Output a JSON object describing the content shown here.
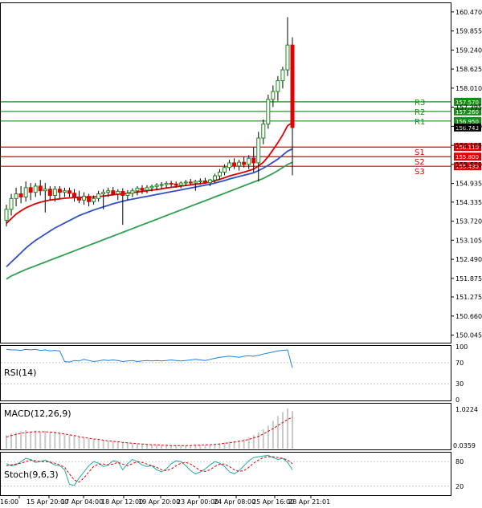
{
  "chart_data": {
    "type": "candlestick",
    "main": {
      "ylim": [
        149.8,
        160.75
      ],
      "price_ticks": [
        "160.470",
        "159.855",
        "159.240",
        "158.625",
        "158.010",
        "157.395",
        "156.780",
        "156.165",
        "155.550",
        "154.935",
        "154.335",
        "153.720",
        "153.105",
        "152.490",
        "151.875",
        "151.275",
        "150.660",
        "150.045"
      ],
      "candles": [
        {
          "o": 153.75,
          "h": 154.25,
          "l": 153.55,
          "c": 154.1
        },
        {
          "o": 154.1,
          "h": 154.6,
          "l": 153.9,
          "c": 154.45
        },
        {
          "o": 154.45,
          "h": 154.8,
          "l": 154.2,
          "c": 154.6
        },
        {
          "o": 154.6,
          "h": 154.85,
          "l": 154.3,
          "c": 154.5
        },
        {
          "o": 154.5,
          "h": 155.0,
          "l": 154.35,
          "c": 154.8
        },
        {
          "o": 154.8,
          "h": 154.95,
          "l": 154.4,
          "c": 154.65
        },
        {
          "o": 154.65,
          "h": 154.95,
          "l": 154.5,
          "c": 154.85
        },
        {
          "o": 154.85,
          "h": 155.05,
          "l": 154.55,
          "c": 154.7
        },
        {
          "o": 154.7,
          "h": 154.95,
          "l": 154.0,
          "c": 154.75
        },
        {
          "o": 154.75,
          "h": 154.85,
          "l": 154.4,
          "c": 154.55
        },
        {
          "o": 154.55,
          "h": 154.85,
          "l": 154.35,
          "c": 154.75
        },
        {
          "o": 154.75,
          "h": 154.85,
          "l": 154.45,
          "c": 154.65
        },
        {
          "o": 154.65,
          "h": 154.8,
          "l": 154.5,
          "c": 154.7
        },
        {
          "o": 154.7,
          "h": 154.8,
          "l": 154.5,
          "c": 154.62
        },
        {
          "o": 154.62,
          "h": 154.75,
          "l": 154.35,
          "c": 154.5
        },
        {
          "o": 154.5,
          "h": 154.7,
          "l": 154.3,
          "c": 154.4
        },
        {
          "o": 154.4,
          "h": 154.65,
          "l": 154.25,
          "c": 154.52
        },
        {
          "o": 154.52,
          "h": 154.6,
          "l": 154.2,
          "c": 154.35
        },
        {
          "o": 154.35,
          "h": 154.55,
          "l": 154.25,
          "c": 154.45
        },
        {
          "o": 154.45,
          "h": 154.7,
          "l": 154.35,
          "c": 154.6
        },
        {
          "o": 154.6,
          "h": 154.75,
          "l": 154.1,
          "c": 154.65
        },
        {
          "o": 154.65,
          "h": 154.8,
          "l": 154.5,
          "c": 154.7
        },
        {
          "o": 154.7,
          "h": 154.82,
          "l": 154.55,
          "c": 154.6
        },
        {
          "o": 154.6,
          "h": 154.75,
          "l": 154.4,
          "c": 154.68
        },
        {
          "o": 154.68,
          "h": 154.78,
          "l": 153.6,
          "c": 154.55
        },
        {
          "o": 154.55,
          "h": 154.72,
          "l": 154.4,
          "c": 154.62
        },
        {
          "o": 154.62,
          "h": 154.78,
          "l": 154.5,
          "c": 154.7
        },
        {
          "o": 154.7,
          "h": 154.85,
          "l": 154.55,
          "c": 154.78
        },
        {
          "o": 154.78,
          "h": 154.88,
          "l": 154.6,
          "c": 154.72
        },
        {
          "o": 154.72,
          "h": 154.88,
          "l": 154.62,
          "c": 154.8
        },
        {
          "o": 154.8,
          "h": 154.9,
          "l": 154.68,
          "c": 154.84
        },
        {
          "o": 154.84,
          "h": 154.95,
          "l": 154.72,
          "c": 154.88
        },
        {
          "o": 154.88,
          "h": 154.98,
          "l": 154.75,
          "c": 154.9
        },
        {
          "o": 154.9,
          "h": 155.0,
          "l": 154.8,
          "c": 154.94
        },
        {
          "o": 154.94,
          "h": 155.02,
          "l": 154.82,
          "c": 154.92
        },
        {
          "o": 154.92,
          "h": 155.0,
          "l": 154.8,
          "c": 154.88
        },
        {
          "o": 154.88,
          "h": 155.0,
          "l": 154.78,
          "c": 154.95
        },
        {
          "o": 154.95,
          "h": 155.05,
          "l": 154.85,
          "c": 154.98
        },
        {
          "o": 154.98,
          "h": 155.08,
          "l": 154.88,
          "c": 154.95
        },
        {
          "o": 154.95,
          "h": 155.05,
          "l": 154.7,
          "c": 155.0
        },
        {
          "o": 155.0,
          "h": 155.1,
          "l": 154.9,
          "c": 155.02
        },
        {
          "o": 155.02,
          "h": 155.12,
          "l": 154.92,
          "c": 154.96
        },
        {
          "o": 154.96,
          "h": 155.08,
          "l": 154.85,
          "c": 155.05
        },
        {
          "o": 155.05,
          "h": 155.25,
          "l": 154.95,
          "c": 155.18
        },
        {
          "o": 155.18,
          "h": 155.4,
          "l": 155.05,
          "c": 155.3
        },
        {
          "o": 155.3,
          "h": 155.55,
          "l": 155.2,
          "c": 155.45
        },
        {
          "o": 155.45,
          "h": 155.7,
          "l": 155.35,
          "c": 155.6
        },
        {
          "o": 155.6,
          "h": 155.75,
          "l": 155.4,
          "c": 155.5
        },
        {
          "o": 155.5,
          "h": 155.7,
          "l": 155.35,
          "c": 155.62
        },
        {
          "o": 155.62,
          "h": 155.8,
          "l": 155.45,
          "c": 155.55
        },
        {
          "o": 155.55,
          "h": 155.85,
          "l": 155.4,
          "c": 155.75
        },
        {
          "o": 155.75,
          "h": 156.1,
          "l": 155.3,
          "c": 155.6
        },
        {
          "o": 155.6,
          "h": 156.6,
          "l": 155.0,
          "c": 156.4
        },
        {
          "o": 156.4,
          "h": 157.0,
          "l": 156.2,
          "c": 156.85
        },
        {
          "o": 156.85,
          "h": 157.8,
          "l": 156.7,
          "c": 157.65
        },
        {
          "o": 157.65,
          "h": 158.1,
          "l": 157.4,
          "c": 157.9
        },
        {
          "o": 157.9,
          "h": 158.4,
          "l": 157.6,
          "c": 158.25
        },
        {
          "o": 158.25,
          "h": 158.7,
          "l": 158.0,
          "c": 158.6
        },
        {
          "o": 158.6,
          "h": 160.3,
          "l": 158.4,
          "c": 159.4
        },
        {
          "o": 159.4,
          "h": 159.65,
          "l": 155.2,
          "c": 156.74
        }
      ],
      "ma_red": [
        153.65,
        153.8,
        153.95,
        154.05,
        154.15,
        154.22,
        154.28,
        154.33,
        154.37,
        154.4,
        154.42,
        154.44,
        154.46,
        154.47,
        154.48,
        154.48,
        154.49,
        154.49,
        154.5,
        154.51,
        154.53,
        154.55,
        154.57,
        154.59,
        154.6,
        154.62,
        154.64,
        154.66,
        154.68,
        154.7,
        154.72,
        154.74,
        154.76,
        154.79,
        154.81,
        154.83,
        154.85,
        154.87,
        154.89,
        154.91,
        154.93,
        154.95,
        154.98,
        155.02,
        155.07,
        155.12,
        155.18,
        155.22,
        155.26,
        155.3,
        155.35,
        155.4,
        155.5,
        155.62,
        155.8,
        156.02,
        156.25,
        156.5,
        156.8,
        156.9
      ],
      "ma_blue": [
        152.25,
        152.4,
        152.55,
        152.7,
        152.85,
        152.98,
        153.1,
        153.2,
        153.3,
        153.4,
        153.5,
        153.58,
        153.66,
        153.74,
        153.82,
        153.9,
        153.96,
        154.02,
        154.08,
        154.13,
        154.18,
        154.23,
        154.28,
        154.32,
        154.36,
        154.4,
        154.43,
        154.46,
        154.49,
        154.52,
        154.55,
        154.58,
        154.61,
        154.64,
        154.67,
        154.7,
        154.73,
        154.76,
        154.79,
        154.82,
        154.85,
        154.88,
        154.91,
        154.95,
        154.99,
        155.03,
        155.08,
        155.12,
        155.16,
        155.2,
        155.24,
        155.28,
        155.35,
        155.43,
        155.52,
        155.62,
        155.72,
        155.85,
        155.98,
        156.05
      ],
      "ma_green": [
        151.85,
        151.95,
        152.02,
        152.09,
        152.16,
        152.22,
        152.28,
        152.34,
        152.4,
        152.46,
        152.52,
        152.58,
        152.64,
        152.7,
        152.76,
        152.82,
        152.88,
        152.94,
        153.0,
        153.06,
        153.12,
        153.18,
        153.24,
        153.3,
        153.36,
        153.42,
        153.48,
        153.54,
        153.6,
        153.66,
        153.72,
        153.78,
        153.84,
        153.9,
        153.96,
        154.02,
        154.08,
        154.14,
        154.2,
        154.26,
        154.32,
        154.38,
        154.44,
        154.5,
        154.56,
        154.62,
        154.68,
        154.74,
        154.8,
        154.86,
        154.92,
        154.98,
        155.04,
        155.1,
        155.18,
        155.26,
        155.35,
        155.45,
        155.55,
        155.62
      ],
      "levels": [
        {
          "name": "R3",
          "value": 157.57,
          "tag": "157.570",
          "color": "#1a8a1a"
        },
        {
          "name": "R2",
          "value": 157.26,
          "tag": "157.260",
          "color": "#1a8a1a"
        },
        {
          "name": "R1",
          "value": 156.95,
          "tag": "156.950",
          "color": "#1a8a1a"
        },
        {
          "name": "S1",
          "value": 156.11,
          "tag": "156.110",
          "color": "#e00000"
        },
        {
          "name": "S2",
          "value": 155.8,
          "tag": "155.800",
          "color": "#e00000"
        },
        {
          "name": "S3",
          "value": 155.49,
          "tag": "155.490",
          "color": "#e00000"
        }
      ],
      "current": {
        "value": 156.743,
        "tag": "156.743"
      }
    },
    "rsi": {
      "title": "RSI(14)",
      "ylim": [
        0,
        100
      ],
      "ticks": [
        "100",
        "70",
        "30",
        "0"
      ],
      "values": [
        95,
        94,
        94,
        93,
        95,
        94,
        95,
        93,
        94,
        92,
        93,
        92,
        72,
        71,
        74,
        73,
        76,
        74,
        72,
        73,
        75,
        74,
        75,
        74,
        72,
        73,
        74,
        72,
        73,
        74,
        73,
        74,
        73,
        74,
        75,
        74,
        73,
        74,
        75,
        76,
        75,
        74,
        76,
        78,
        80,
        81,
        82,
        81,
        80,
        82,
        83,
        82,
        84,
        86,
        88,
        90,
        92,
        93,
        94,
        60
      ]
    },
    "macd": {
      "title": "MACD(12,26,9)",
      "ylim": [
        0,
        1.15
      ],
      "ticks": [
        "1.0224",
        "0.0359"
      ],
      "hist": [
        0.35,
        0.4,
        0.42,
        0.45,
        0.48,
        0.45,
        0.47,
        0.44,
        0.46,
        0.43,
        0.44,
        0.4,
        0.38,
        0.36,
        0.34,
        0.3,
        0.28,
        0.26,
        0.25,
        0.24,
        0.22,
        0.2,
        0.19,
        0.18,
        0.16,
        0.15,
        0.14,
        0.13,
        0.12,
        0.11,
        0.1,
        0.1,
        0.09,
        0.09,
        0.08,
        0.08,
        0.08,
        0.08,
        0.09,
        0.09,
        0.1,
        0.1,
        0.11,
        0.12,
        0.14,
        0.16,
        0.18,
        0.2,
        0.22,
        0.25,
        0.3,
        0.35,
        0.42,
        0.5,
        0.6,
        0.72,
        0.85,
        0.95,
        1.05,
        0.98
      ],
      "signal": [
        0.3,
        0.34,
        0.37,
        0.4,
        0.42,
        0.43,
        0.44,
        0.44,
        0.44,
        0.43,
        0.42,
        0.4,
        0.38,
        0.36,
        0.34,
        0.31,
        0.29,
        0.27,
        0.25,
        0.24,
        0.22,
        0.2,
        0.19,
        0.18,
        0.16,
        0.15,
        0.14,
        0.13,
        0.12,
        0.11,
        0.1,
        0.1,
        0.09,
        0.09,
        0.08,
        0.08,
        0.08,
        0.08,
        0.08,
        0.09,
        0.09,
        0.1,
        0.1,
        0.11,
        0.12,
        0.14,
        0.15,
        0.17,
        0.19,
        0.21,
        0.24,
        0.28,
        0.32,
        0.38,
        0.45,
        0.52,
        0.6,
        0.68,
        0.76,
        0.82
      ]
    },
    "stoch": {
      "title": "Stoch(9,6,3)",
      "ylim": [
        0,
        100
      ],
      "ticks": [
        "80",
        "20"
      ],
      "main": [
        75,
        70,
        72,
        80,
        88,
        85,
        78,
        80,
        84,
        78,
        72,
        70,
        60,
        25,
        22,
        40,
        55,
        70,
        80,
        76,
        68,
        72,
        82,
        80,
        60,
        75,
        85,
        80,
        72,
        68,
        70,
        60,
        55,
        62,
        75,
        82,
        80,
        70,
        58,
        50,
        55,
        62,
        72,
        80,
        76,
        68,
        55,
        50,
        58,
        70,
        82,
        90,
        92,
        94,
        95,
        90,
        85,
        88,
        78,
        60
      ],
      "signal": [
        70,
        72,
        74,
        76,
        80,
        84,
        82,
        80,
        80,
        79,
        76,
        72,
        66,
        50,
        35,
        30,
        40,
        55,
        68,
        74,
        74,
        72,
        74,
        78,
        74,
        70,
        75,
        80,
        78,
        74,
        70,
        66,
        60,
        58,
        62,
        70,
        76,
        78,
        74,
        66,
        58,
        56,
        60,
        68,
        74,
        74,
        68,
        60,
        56,
        58,
        66,
        76,
        84,
        90,
        92,
        92,
        90,
        88,
        84,
        75
      ]
    },
    "x_labels": [
      "16:00",
      "15 Apr 20:00",
      "17 Apr 04:00",
      "18 Apr 12:00",
      "19 Apr 20:00",
      "23 Apr 00:00",
      "24 Apr 08:00",
      "25 Apr 16:00",
      "28 Apr 21:01"
    ],
    "colors": {
      "bull": "#1a8a1a",
      "bear": "#e00000",
      "ma_red": "#e00000",
      "ma_blue": "#3050c8",
      "ma_green": "#30a050",
      "rsi": "#2080e0",
      "macd_signal": "#e00000",
      "macd_hist": "#c8c8c8",
      "stoch_main": "#20a8a8",
      "stoch_signal": "#e00000"
    }
  }
}
